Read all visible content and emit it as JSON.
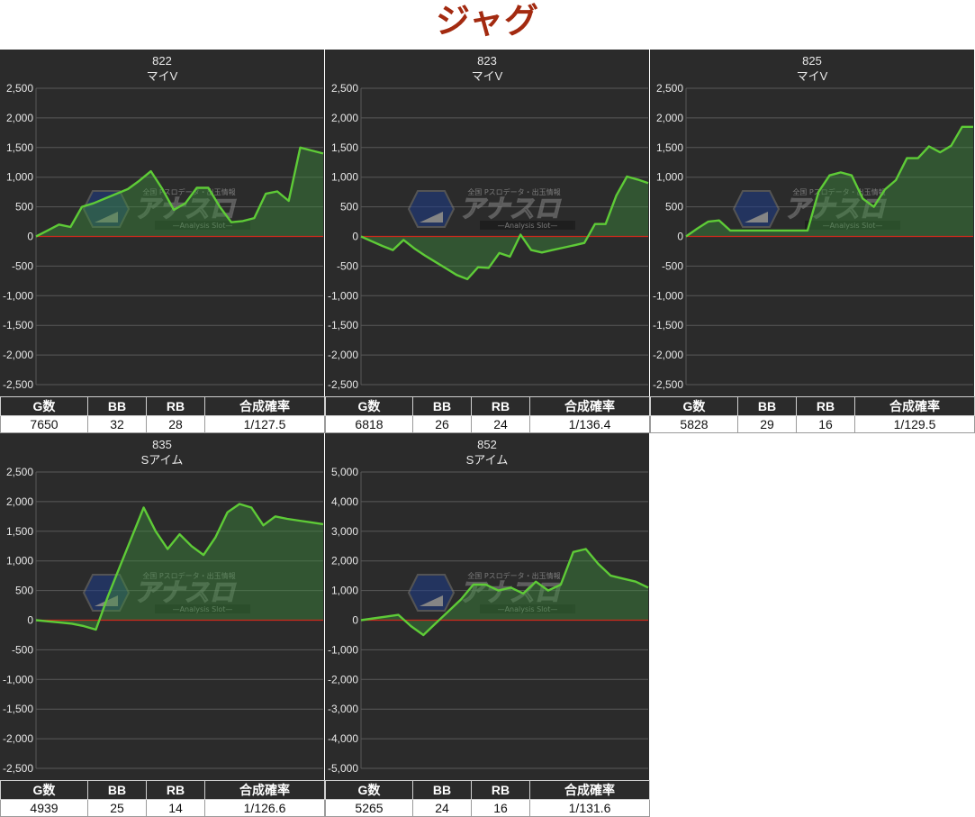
{
  "page": {
    "title": "ジャグ"
  },
  "table_headers": [
    "G数",
    "BB",
    "RB",
    "合成確率"
  ],
  "watermark": {
    "top": "全国 Pスロデータ・出玉情報",
    "main": "アナスロ",
    "sub": "—Analysis Slot—"
  },
  "colors": {
    "panel_bg": "#2b2b2b",
    "line": "#5ecb37",
    "fill": "#3c8a3c",
    "zero_line": "#cc2a1c",
    "grid": "#595959",
    "title_red": "#a32a10"
  },
  "chart_data": [
    {
      "type": "area",
      "title": "822",
      "subtitle": "マイV",
      "ylim": [
        -2500,
        2500
      ],
      "ticks": [
        2500,
        2000,
        1500,
        1000,
        500,
        0,
        -500,
        -1000,
        -1500,
        -2000,
        -2500
      ],
      "tick_labels": [
        "2,500",
        "2,000",
        "1,500",
        "1,000",
        "500",
        "0",
        "-500",
        "-1,000",
        "-1,500",
        "-2,000",
        "-2,500"
      ],
      "values": [
        0,
        100,
        200,
        160,
        500,
        560,
        640,
        720,
        800,
        940,
        1100,
        800,
        450,
        560,
        820,
        820,
        500,
        240,
        260,
        310,
        720,
        760,
        600,
        1500,
        1450,
        1400
      ],
      "stats": {
        "games": "7650",
        "bb": "32",
        "rb": "28",
        "rate": "1/127.5"
      }
    },
    {
      "type": "area",
      "title": "823",
      "subtitle": "マイV",
      "ylim": [
        -2500,
        2500
      ],
      "ticks": [
        2500,
        2000,
        1500,
        1000,
        500,
        0,
        -500,
        -1000,
        -1500,
        -2000,
        -2500
      ],
      "tick_labels": [
        "2,500",
        "2,000",
        "1,500",
        "1,000",
        "500",
        "0",
        "-500",
        "-1,000",
        "-1,500",
        "-2,000",
        "-2,500"
      ],
      "values": [
        0,
        -80,
        -160,
        -230,
        -60,
        -200,
        -320,
        -430,
        -540,
        -650,
        -720,
        -520,
        -530,
        -280,
        -340,
        30,
        -230,
        -270,
        -230,
        -190,
        -150,
        -110,
        210,
        210,
        690,
        1010,
        960,
        900
      ],
      "stats": {
        "games": "6818",
        "bb": "26",
        "rb": "24",
        "rate": "1/136.4"
      }
    },
    {
      "type": "area",
      "title": "825",
      "subtitle": "マイV",
      "ylim": [
        -2500,
        2500
      ],
      "ticks": [
        2500,
        2000,
        1500,
        1000,
        500,
        0,
        -500,
        -1000,
        -1500,
        -2000,
        -2500
      ],
      "tick_labels": [
        "2,500",
        "2,000",
        "1,500",
        "1,000",
        "500",
        "0",
        "-500",
        "-1,000",
        "-1,500",
        "-2,000",
        "-2,500"
      ],
      "values": [
        0,
        130,
        250,
        270,
        100,
        100,
        100,
        100,
        100,
        100,
        100,
        100,
        750,
        1030,
        1080,
        1030,
        640,
        500,
        790,
        950,
        1320,
        1320,
        1520,
        1420,
        1530,
        1850,
        1850
      ],
      "stats": {
        "games": "5828",
        "bb": "29",
        "rb": "16",
        "rate": "1/129.5"
      }
    },
    {
      "type": "area",
      "title": "835",
      "subtitle": "Sアイム",
      "ylim": [
        -2500,
        2500
      ],
      "ticks": [
        2500,
        2000,
        1500,
        1000,
        500,
        0,
        -500,
        -1000,
        -1500,
        -2000,
        -2500
      ],
      "tick_labels": [
        "2,500",
        "2,000",
        "1,500",
        "1,000",
        "500",
        "0",
        "-500",
        "-1,000",
        "-1,500",
        "-2,000",
        "-2,500"
      ],
      "values": [
        0,
        -20,
        -40,
        -60,
        -100,
        -160,
        400,
        900,
        1400,
        1900,
        1500,
        1200,
        1450,
        1250,
        1100,
        1400,
        1820,
        1960,
        1900,
        1600,
        1750,
        1710,
        1680,
        1650,
        1620
      ],
      "stats": {
        "games": "4939",
        "bb": "25",
        "rb": "14",
        "rate": "1/126.6"
      }
    },
    {
      "type": "area",
      "title": "852",
      "subtitle": "Sアイム",
      "ylim": [
        -5000,
        5000
      ],
      "ticks": [
        5000,
        4000,
        3000,
        2000,
        1000,
        0,
        -1000,
        -2000,
        -3000,
        -4000,
        -5000
      ],
      "tick_labels": [
        "5,000",
        "4,000",
        "3,000",
        "2,000",
        "1,000",
        "0",
        "-1,000",
        "-2,000",
        "-3,000",
        "-4,000",
        "-5,000"
      ],
      "values": [
        0,
        60,
        120,
        180,
        -200,
        -500,
        -100,
        300,
        700,
        1200,
        1200,
        1000,
        1100,
        900,
        1300,
        1000,
        1200,
        2300,
        2400,
        1900,
        1500,
        1400,
        1300,
        1100
      ],
      "stats": {
        "games": "5265",
        "bb": "24",
        "rb": "16",
        "rate": "1/131.6"
      }
    }
  ]
}
